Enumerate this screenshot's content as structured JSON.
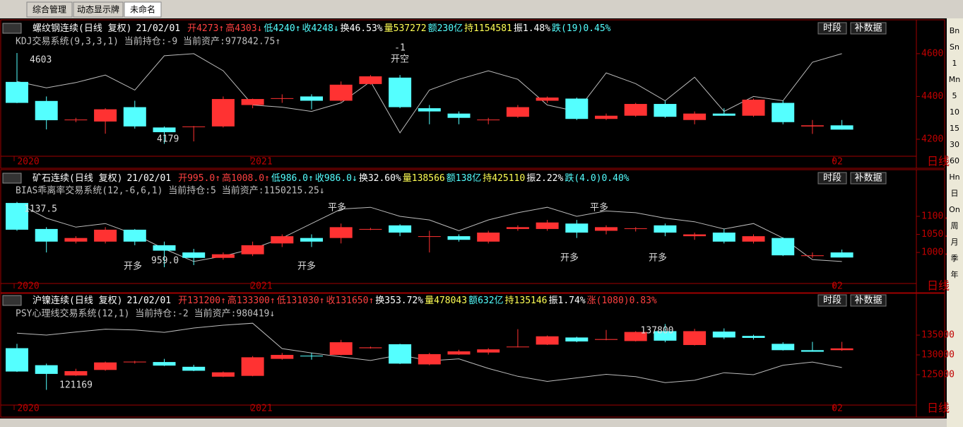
{
  "tabs": [
    "综合管理",
    "动态显示牌",
    "未命名"
  ],
  "sidebar": [
    "Bn",
    "Sn",
    "1",
    "Mn",
    "5",
    "10",
    "15",
    "30",
    "60",
    "Hn",
    "日",
    "On",
    "周",
    "月",
    "季",
    "年"
  ],
  "panels": [
    {
      "type": "candlestick",
      "name": "螺纹钢连续(日线 复权)",
      "date": "21/02/01",
      "fields": [
        {
          "text": "开4273↑",
          "color": "#ff4040"
        },
        {
          "text": "高4303↓",
          "color": "#ff4040"
        },
        {
          "text": "低4240↑",
          "color": "#54ffff"
        },
        {
          "text": "收4248↓",
          "color": "#54ffff"
        },
        {
          "text": "换46.53%",
          "color": "#ffffff"
        },
        {
          "text": "量537272",
          "color": "#ffff54"
        },
        {
          "text": "额230亿",
          "color": "#54ffff"
        },
        {
          "text": "持1154581",
          "color": "#ffff54"
        },
        {
          "text": "振1.48%",
          "color": "#ffffff"
        },
        {
          "text": "跌(19)0.45%",
          "color": "#54ffff"
        }
      ],
      "system": "KDJ交易系统(9,3,3,1) 当前持仓:-9 当前资产:977842.75↑",
      "buttons": [
        "时段",
        "补数据"
      ],
      "ylim": [
        4124,
        4702
      ],
      "yticks": [
        4200,
        4400,
        4600
      ],
      "xlabels": [
        "2020",
        "2021",
        "02",
        "日线"
      ],
      "annotations": [
        "4603",
        "4179",
        "-1",
        "开空"
      ],
      "open": [
        4468,
        4379,
        4289,
        4283,
        4350,
        4255,
        4257,
        4260,
        4360,
        4390,
        4400,
        4380,
        4458,
        4488,
        4345,
        4320,
        4290,
        4305,
        4380,
        4390,
        4295,
        4310,
        4365,
        4290,
        4320,
        4310,
        4370,
        4260,
        4265
      ],
      "high": [
        4603,
        4400,
        4300,
        4345,
        4380,
        4260,
        4262,
        4400,
        4390,
        4410,
        4410,
        4470,
        4500,
        4500,
        4360,
        4330,
        4300,
        4360,
        4400,
        4395,
        4320,
        4370,
        4380,
        4330,
        4345,
        4390,
        4380,
        4290,
        4290
      ],
      "low": [
        4369,
        4246,
        4280,
        4226,
        4250,
        4179,
        4190,
        4255,
        4345,
        4370,
        4340,
        4375,
        4455,
        4345,
        4270,
        4270,
        4270,
        4300,
        4370,
        4290,
        4290,
        4305,
        4300,
        4270,
        4310,
        4305,
        4270,
        4225,
        4245
      ],
      "close": [
        4370,
        4289,
        4292,
        4340,
        4260,
        4233,
        4260,
        4388,
        4388,
        4392,
        4380,
        4455,
        4494,
        4350,
        4330,
        4300,
        4292,
        4350,
        4395,
        4295,
        4310,
        4365,
        4305,
        4320,
        4310,
        4385,
        4280,
        4265,
        4245
      ],
      "line": [
        4470,
        4440,
        4465,
        4500,
        4430,
        4590,
        4600,
        4520,
        4360,
        4350,
        4330,
        4370,
        4470,
        4230,
        4430,
        4480,
        4520,
        4480,
        4360,
        4330,
        4510,
        4460,
        4380,
        4490,
        4330,
        4400,
        4380,
        4560,
        4600
      ]
    },
    {
      "type": "candlestick",
      "name": "矿石连续(日线 复权)",
      "date": "21/02/01",
      "fields": [
        {
          "text": "开995.0↑",
          "color": "#ff4040"
        },
        {
          "text": "高1008.0↑",
          "color": "#ff4040"
        },
        {
          "text": "低986.0↑",
          "color": "#54ffff"
        },
        {
          "text": "收986.0↓",
          "color": "#54ffff"
        },
        {
          "text": "换32.60%",
          "color": "#ffffff"
        },
        {
          "text": "量138566",
          "color": "#ffff54"
        },
        {
          "text": "额138亿",
          "color": "#54ffff"
        },
        {
          "text": "持425110",
          "color": "#ffff54"
        },
        {
          "text": "振2.22%",
          "color": "#ffffff"
        },
        {
          "text": "跌(4.0)0.40%",
          "color": "#54ffff"
        }
      ],
      "system": "BIAS乖离率交易系统(12,-6,6,1) 当前持仓:5 当前资产:1150215.25↓",
      "buttons": [
        "时段",
        "补数据"
      ],
      "ylim": [
        916,
        1194
      ],
      "yticks": [
        {
          "value": 1000,
          "label": "1000."
        },
        {
          "value": 1050,
          "label": "1050."
        },
        {
          "value": 1100,
          "label": "1100."
        }
      ],
      "xlabels": [
        "2020",
        "2021",
        "02",
        "日线"
      ],
      "annotations": [
        "1137.5",
        "959.0",
        "开多",
        "开多",
        "平多",
        "开多",
        "平多",
        "开多"
      ],
      "open": [
        1137,
        1065,
        1030,
        1030,
        1063,
        1020,
        1000,
        985,
        995,
        1025,
        1040,
        1040,
        1063,
        1075,
        1045,
        1045,
        1030,
        1065,
        1065,
        1080,
        1060,
        1065,
        1075,
        1045,
        1055,
        1030,
        1040,
        990,
        1000
      ],
      "high": [
        1140,
        1070,
        1045,
        1070,
        1065,
        1030,
        1010,
        1000,
        1030,
        1050,
        1050,
        1080,
        1068,
        1078,
        1060,
        1050,
        1060,
        1075,
        1090,
        1090,
        1075,
        1070,
        1080,
        1055,
        1065,
        1050,
        1042,
        1000,
        1008
      ],
      "low": [
        1060,
        1000,
        1025,
        1025,
        1020,
        959,
        965,
        980,
        990,
        1015,
        1015,
        1025,
        1062,
        1045,
        1000,
        1030,
        1025,
        1060,
        1060,
        1040,
        1050,
        1058,
        1045,
        1035,
        1025,
        1025,
        990,
        985,
        986
      ],
      "close": [
        1063,
        1030,
        1040,
        1063,
        1030,
        1005,
        985,
        995,
        1020,
        1045,
        1030,
        1070,
        1065,
        1055,
        1045,
        1035,
        1055,
        1070,
        1083,
        1055,
        1070,
        1067,
        1055,
        1050,
        1030,
        1045,
        992,
        992,
        986
      ],
      "line": [
        1137,
        1095,
        1070,
        1080,
        1050,
        1010,
        975,
        990,
        1010,
        1040,
        1080,
        1120,
        1125,
        1100,
        1090,
        1060,
        1090,
        1110,
        1125,
        1100,
        1115,
        1110,
        1095,
        1085,
        1065,
        1080,
        1040,
        980,
        975
      ]
    },
    {
      "type": "candlestick",
      "name": "沪镍连续(日线 复权)",
      "date": "21/02/01",
      "fields": [
        {
          "text": "开131200↑",
          "color": "#ff4040"
        },
        {
          "text": "高133300↑",
          "color": "#ff4040"
        },
        {
          "text": "低131030↑",
          "color": "#ff4040"
        },
        {
          "text": "收131650↑",
          "color": "#ff4040"
        },
        {
          "text": "换353.72%",
          "color": "#ffffff"
        },
        {
          "text": "量478043",
          "color": "#ffff54"
        },
        {
          "text": "额632亿",
          "color": "#54ffff"
        },
        {
          "text": "持135146",
          "color": "#ffff54"
        },
        {
          "text": "振1.74%",
          "color": "#ffffff"
        },
        {
          "text": "涨(1080)0.83%",
          "color": "#ff4040"
        }
      ],
      "system": "PSY心理线交易系统(12,1) 当前持仓:-2 当前资产:980419↓",
      "buttons": [
        "时段",
        "补数据"
      ],
      "ylim": [
        117500,
        138400
      ],
      "yticks": [
        125000,
        130000,
        135000
      ],
      "xlabels": [
        "2020",
        "2021",
        "02",
        "日线"
      ],
      "annotations": [
        "121169",
        "137800"
      ],
      "open": [
        131700,
        127400,
        124800,
        126200,
        128200,
        128200,
        127000,
        124500,
        124700,
        129000,
        129800,
        130000,
        131700,
        132700,
        127600,
        130100,
        130600,
        132000,
        132600,
        134400,
        133800,
        133500,
        136000,
        132500,
        135900,
        134800,
        132800,
        131200,
        131200
      ],
      "high": [
        132800,
        127800,
        126500,
        128300,
        128500,
        129000,
        127500,
        125800,
        129700,
        130500,
        130500,
        133800,
        132100,
        132800,
        130500,
        131300,
        131700,
        136500,
        134900,
        134600,
        136300,
        136000,
        137800,
        136600,
        136700,
        135100,
        133200,
        133300,
        133300
      ],
      "low": [
        125700,
        121169,
        124700,
        126000,
        127800,
        127200,
        125900,
        124400,
        124600,
        128800,
        128800,
        129900,
        131600,
        127700,
        127400,
        130000,
        130100,
        131900,
        132500,
        133200,
        133700,
        133400,
        133200,
        132400,
        134000,
        133900,
        131100,
        130800,
        131030
      ],
      "close": [
        125800,
        125200,
        125900,
        128100,
        128300,
        127300,
        126000,
        125600,
        129400,
        130000,
        129700,
        133200,
        131900,
        127800,
        130200,
        130900,
        131400,
        132100,
        134700,
        133400,
        134000,
        135800,
        133600,
        136000,
        134400,
        134300,
        131200,
        130800,
        131650
      ],
      "line": [
        135500,
        135000,
        135800,
        136500,
        136300,
        135700,
        136800,
        137500,
        138000,
        131600,
        130500,
        129500,
        128600,
        130000,
        128500,
        129000,
        126600,
        124600,
        123300,
        124200,
        125100,
        124500,
        123000,
        123600,
        125500,
        125000,
        127400,
        128200,
        126800
      ]
    }
  ]
}
